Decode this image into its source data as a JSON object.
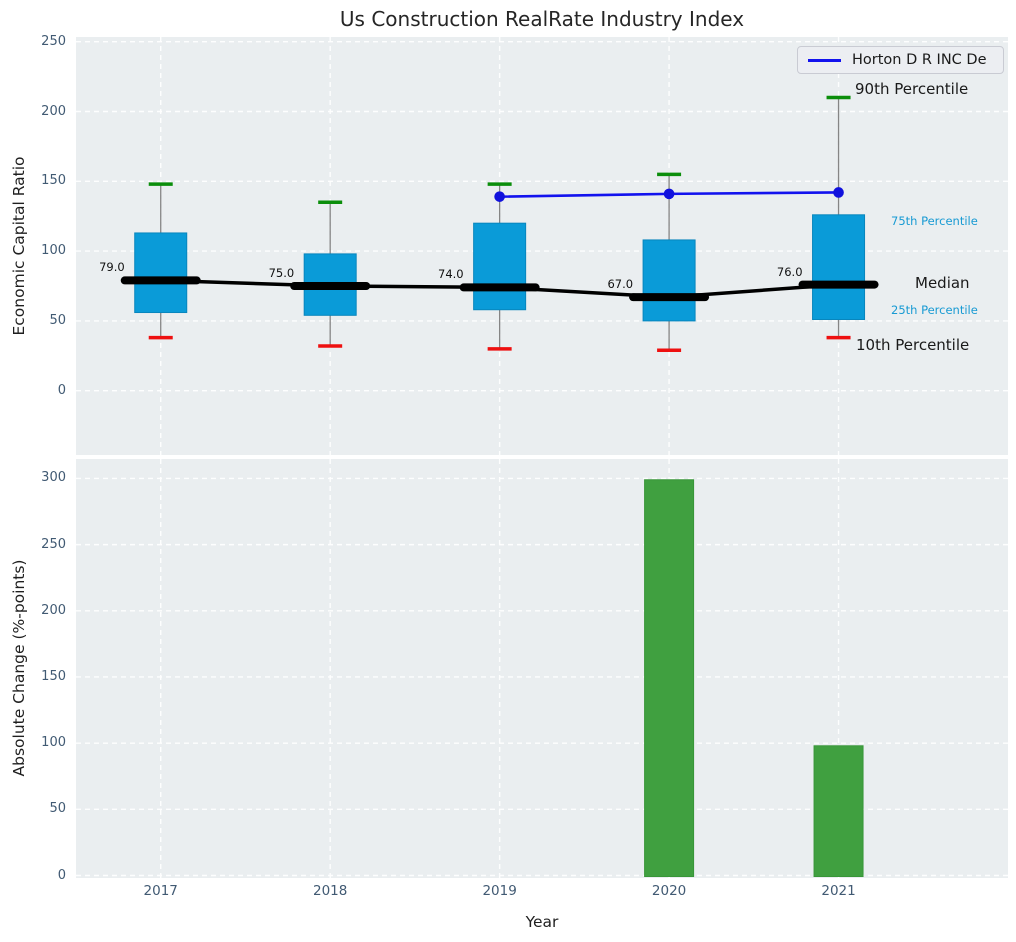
{
  "figure_title": "Us Construction RealRate Industry Index",
  "colors": {
    "box_fill": "#0a9bd8",
    "box_edge": "#0886bd",
    "median_line": "#000000",
    "whisker": "#858585",
    "cap_high": "#0b8e0b",
    "cap_low": "#ee1010",
    "company_line": "#1212ee",
    "company_dot": "#1111dd",
    "bar": "#40a040",
    "bar_edge": "#389638",
    "axes_bg": "#eaeef0",
    "grid": "#ffffff",
    "tick_label": "#415a73",
    "text": "#1f1f1f",
    "annotation_accent": "#179ad3",
    "legend_bg": "#eceef2",
    "legend_border": "#c9cbd3"
  },
  "chart_data": [
    {
      "type": "boxplot",
      "title": "Us Construction RealRate Industry Index",
      "ylabel": "Economic Capital Ratio",
      "xlabel": "",
      "categories": [
        "2017",
        "2018",
        "2019",
        "2020",
        "2021"
      ],
      "yticks": [
        0,
        50,
        100,
        150,
        200,
        250
      ],
      "ylim": [
        -24,
        253
      ],
      "grid": true,
      "legend": {
        "label": "Horton D R INC De",
        "position": "upper right"
      },
      "series": [
        {
          "name": "90th Percentile",
          "role": "whisker_high",
          "values": [
            148,
            135,
            148,
            155,
            210
          ]
        },
        {
          "name": "75th Percentile",
          "role": "box_top",
          "values": [
            113,
            98,
            120,
            108,
            126
          ]
        },
        {
          "name": "Median",
          "role": "median",
          "values": [
            79,
            75,
            74,
            67,
            76
          ]
        },
        {
          "name": "25th Percentile",
          "role": "box_bottom",
          "values": [
            56,
            54,
            58,
            50,
            51
          ]
        },
        {
          "name": "10th Percentile",
          "role": "whisker_low",
          "values": [
            38,
            32,
            30,
            29,
            38
          ]
        },
        {
          "name": "Horton D R INC De",
          "role": "line",
          "values": [
            null,
            null,
            139,
            141,
            142
          ]
        }
      ],
      "median_labels": [
        "79.0",
        "75.0",
        "74.0",
        "67.0",
        "76.0"
      ],
      "annotations": {
        "p90": "90th Percentile",
        "p75": "75th Percentile",
        "median": "Median",
        "p25": "25th Percentile",
        "p10": "10th Percentile"
      }
    },
    {
      "type": "bar",
      "title": "",
      "ylabel": "Absolute Change (%-points)",
      "xlabel": "Year",
      "categories": [
        "2017",
        "2018",
        "2019",
        "2020",
        "2021"
      ],
      "values": [
        0,
        0,
        0,
        299,
        98
      ],
      "yticks": [
        0,
        50,
        100,
        150,
        200,
        250,
        300
      ],
      "ylim": [
        0,
        317
      ],
      "grid": true
    }
  ]
}
